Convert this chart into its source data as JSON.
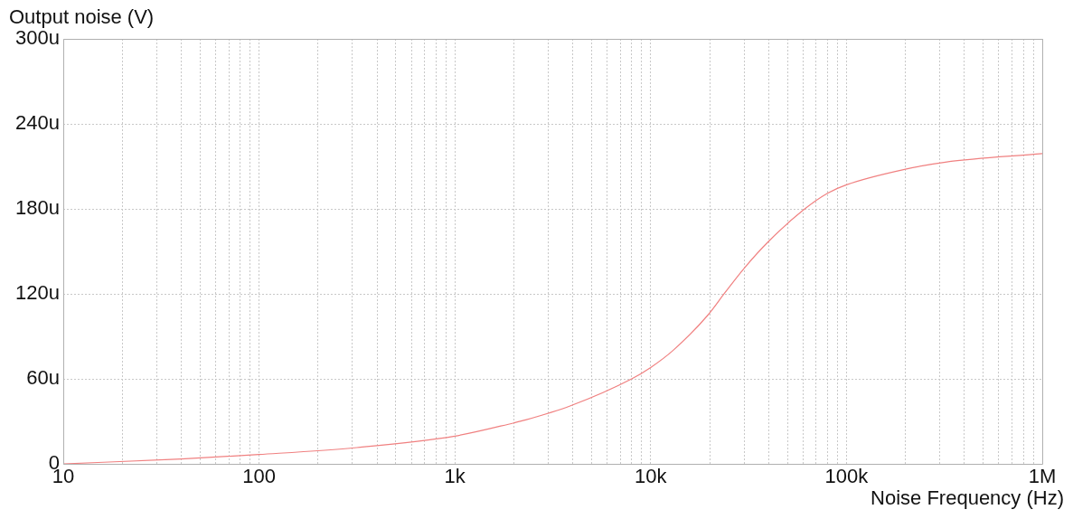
{
  "chart_data": {
    "type": "line",
    "ylabel": "Output noise (V)",
    "xlabel": "Noise Frequency (Hz)",
    "log": "x",
    "grid": true,
    "marker": "none",
    "line_style": "solid",
    "xlim": [
      10,
      1000000
    ],
    "ylim": [
      0,
      300
    ],
    "xticks": [
      {
        "value": 10,
        "label": "10"
      },
      {
        "value": 20,
        "label": null
      },
      {
        "value": 30,
        "label": null
      },
      {
        "value": 40,
        "label": null
      },
      {
        "value": 50,
        "label": null
      },
      {
        "value": 60,
        "label": null
      },
      {
        "value": 70,
        "label": null
      },
      {
        "value": 80,
        "label": null
      },
      {
        "value": 90,
        "label": null
      },
      {
        "value": 100,
        "label": "100"
      },
      {
        "value": 200,
        "label": null
      },
      {
        "value": 300,
        "label": null
      },
      {
        "value": 400,
        "label": null
      },
      {
        "value": 500,
        "label": null
      },
      {
        "value": 600,
        "label": null
      },
      {
        "value": 700,
        "label": null
      },
      {
        "value": 800,
        "label": null
      },
      {
        "value": 900,
        "label": null
      },
      {
        "value": 1000,
        "label": "1k"
      },
      {
        "value": 2000,
        "label": null
      },
      {
        "value": 3000,
        "label": null
      },
      {
        "value": 4000,
        "label": null
      },
      {
        "value": 5000,
        "label": null
      },
      {
        "value": 6000,
        "label": null
      },
      {
        "value": 7000,
        "label": null
      },
      {
        "value": 8000,
        "label": null
      },
      {
        "value": 9000,
        "label": null
      },
      {
        "value": 10000,
        "label": "10k"
      },
      {
        "value": 20000,
        "label": null
      },
      {
        "value": 30000,
        "label": null
      },
      {
        "value": 40000,
        "label": null
      },
      {
        "value": 50000,
        "label": null
      },
      {
        "value": 60000,
        "label": null
      },
      {
        "value": 70000,
        "label": null
      },
      {
        "value": 80000,
        "label": null
      },
      {
        "value": 90000,
        "label": null
      },
      {
        "value": 100000,
        "label": "100k"
      },
      {
        "value": 200000,
        "label": null
      },
      {
        "value": 300000,
        "label": null
      },
      {
        "value": 400000,
        "label": null
      },
      {
        "value": 500000,
        "label": null
      },
      {
        "value": 600000,
        "label": null
      },
      {
        "value": 700000,
        "label": null
      },
      {
        "value": 800000,
        "label": null
      },
      {
        "value": 900000,
        "label": null
      },
      {
        "value": 1000000,
        "label": "1M"
      }
    ],
    "yticks": [
      {
        "value": 0,
        "label": "0"
      },
      {
        "value": 60,
        "label": "60u"
      },
      {
        "value": 120,
        "label": "120u"
      },
      {
        "value": 180,
        "label": "180u"
      },
      {
        "value": 240,
        "label": "240u"
      },
      {
        "value": 300,
        "label": "300u"
      }
    ],
    "x": [
      10,
      40,
      100,
      316,
      1000,
      2000,
      2300,
      3900,
      8000,
      10000,
      13000,
      19600,
      24000,
      30000,
      40000,
      60000,
      80000,
      100000,
      200000,
      320000,
      1000000
    ],
    "series": [
      {
        "color": "#f08080",
        "values": [
          0,
          3.4,
          6.6,
          11.5,
          19.6,
          28.9,
          31,
          41,
          60,
          68,
          80,
          105,
          121,
          138,
          157,
          179,
          191,
          197,
          208,
          213,
          219
        ]
      }
    ]
  }
}
